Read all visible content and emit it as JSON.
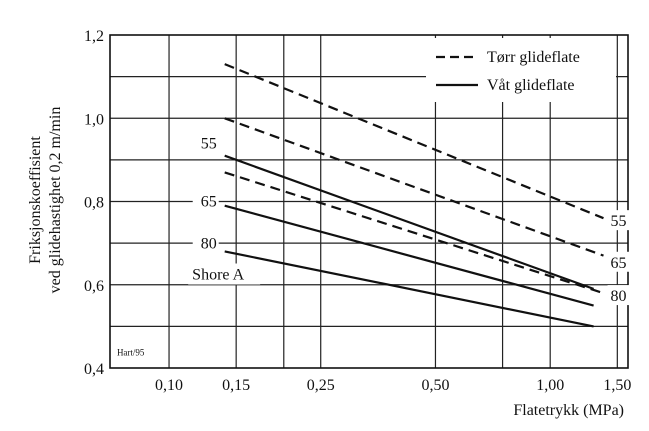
{
  "chart_data": {
    "type": "line",
    "title": "",
    "xlabel": "Flatetrykk (MPa)",
    "ylabel_lines": [
      "Friksjonskoeffisient",
      "ved glidehastighet 0,2 m/min"
    ],
    "x_scale": "log",
    "xlim": [
      0.07,
      1.6
    ],
    "ylim": [
      0.4,
      1.2
    ],
    "x_ticks": [
      {
        "value": 0.1,
        "label": "0,10"
      },
      {
        "value": 0.15,
        "label": "0,15"
      },
      {
        "value": 0.25,
        "label": "0,25"
      },
      {
        "value": 0.5,
        "label": "0,50"
      },
      {
        "value": 1.0,
        "label": "1,00"
      },
      {
        "value": 1.5,
        "label": "1,50"
      }
    ],
    "x_grid": [
      0.1,
      0.15,
      0.2,
      0.25,
      0.5,
      0.75,
      1.0,
      1.5
    ],
    "y_ticks": [
      {
        "value": 0.4,
        "label": "0,4"
      },
      {
        "value": 0.6,
        "label": "0,6"
      },
      {
        "value": 0.8,
        "label": "0,8"
      },
      {
        "value": 1.0,
        "label": "1,0"
      },
      {
        "value": 1.2,
        "label": "1,2"
      }
    ],
    "y_grid": [
      0.5,
      0.6,
      0.7,
      0.8,
      0.9,
      1.0,
      1.1
    ],
    "legend": {
      "position": "top-right",
      "entries": [
        {
          "label": "Tørr glideflate",
          "style": "dashed"
        },
        {
          "label": "Våt glideflate",
          "style": "solid"
        }
      ]
    },
    "series": [
      {
        "name": "Tørr 55",
        "style": "dashed",
        "x": [
          0.14,
          1.38
        ],
        "y": [
          1.13,
          0.76
        ]
      },
      {
        "name": "Tørr 65",
        "style": "dashed",
        "x": [
          0.14,
          1.38
        ],
        "y": [
          1.0,
          0.67
        ]
      },
      {
        "name": "Tørr 80",
        "style": "dashed",
        "x": [
          0.14,
          1.38
        ],
        "y": [
          0.87,
          0.58
        ]
      },
      {
        "name": "Våt 55",
        "style": "solid",
        "x": [
          0.14,
          1.3
        ],
        "y": [
          0.91,
          0.59
        ]
      },
      {
        "name": "Våt 65",
        "style": "solid",
        "x": [
          0.14,
          1.3
        ],
        "y": [
          0.79,
          0.55
        ]
      },
      {
        "name": "Våt 80",
        "style": "solid",
        "x": [
          0.14,
          1.3
        ],
        "y": [
          0.68,
          0.5
        ]
      }
    ],
    "left_labels": [
      {
        "text": "55",
        "x": 0.135,
        "y": 0.93
      },
      {
        "text": "65",
        "x": 0.135,
        "y": 0.79
      },
      {
        "text": "80",
        "x": 0.135,
        "y": 0.69
      }
    ],
    "right_labels": [
      {
        "text": "55",
        "x": 1.44,
        "y": 0.76
      },
      {
        "text": "65",
        "x": 1.44,
        "y": 0.66
      },
      {
        "text": "80",
        "x": 1.44,
        "y": 0.58
      }
    ],
    "annotations": [
      {
        "text": "Shore A",
        "x": 0.115,
        "y": 0.615
      },
      {
        "text": "Hart/95",
        "x": 0.073,
        "y": 0.43
      }
    ]
  }
}
